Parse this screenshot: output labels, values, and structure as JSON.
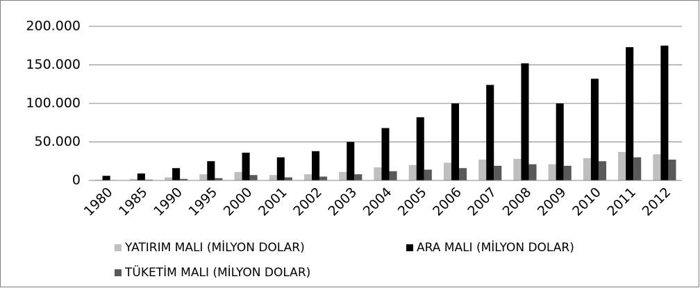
{
  "chart_data": {
    "type": "bar",
    "categories": [
      "1980",
      "1985",
      "1990",
      "1995",
      "2000",
      "2001",
      "2002",
      "2003",
      "2004",
      "2005",
      "2006",
      "2007",
      "2008",
      "2009",
      "2010",
      "2011",
      "2012"
    ],
    "series": [
      {
        "name": "YATIRIM MALI (MİLYON DOLAR)",
        "color": "#bfbfbf",
        "values": [
          1000,
          2000,
          4000,
          8000,
          11000,
          7000,
          8000,
          11000,
          17000,
          20000,
          23000,
          27000,
          28000,
          21000,
          29000,
          37000,
          34000
        ]
      },
      {
        "name": "ARA MALI (MİLYON DOLAR)",
        "color": "#000000",
        "values": [
          6000,
          9000,
          16000,
          25000,
          36000,
          30000,
          38000,
          50000,
          68000,
          82000,
          100000,
          124000,
          152000,
          100000,
          132000,
          173000,
          175000
        ]
      },
      {
        "name": "TÜKETİM MALI (MİLYON DOLAR)",
        "color": "#595959",
        "values": [
          500,
          1000,
          2000,
          3000,
          7000,
          4000,
          5000,
          8000,
          12000,
          14000,
          16000,
          19000,
          21000,
          19000,
          25000,
          30000,
          27000
        ]
      }
    ],
    "ylim": [
      0,
      200000
    ],
    "yticks": [
      0,
      {
        "value": 50000,
        "label": "50.000"
      },
      {
        "value": 100000,
        "label": "100.000"
      },
      {
        "value": 150000,
        "label": "150.000"
      },
      {
        "value": 200000,
        "label": "200.000"
      }
    ],
    "grid": true,
    "legend": "bottom"
  }
}
